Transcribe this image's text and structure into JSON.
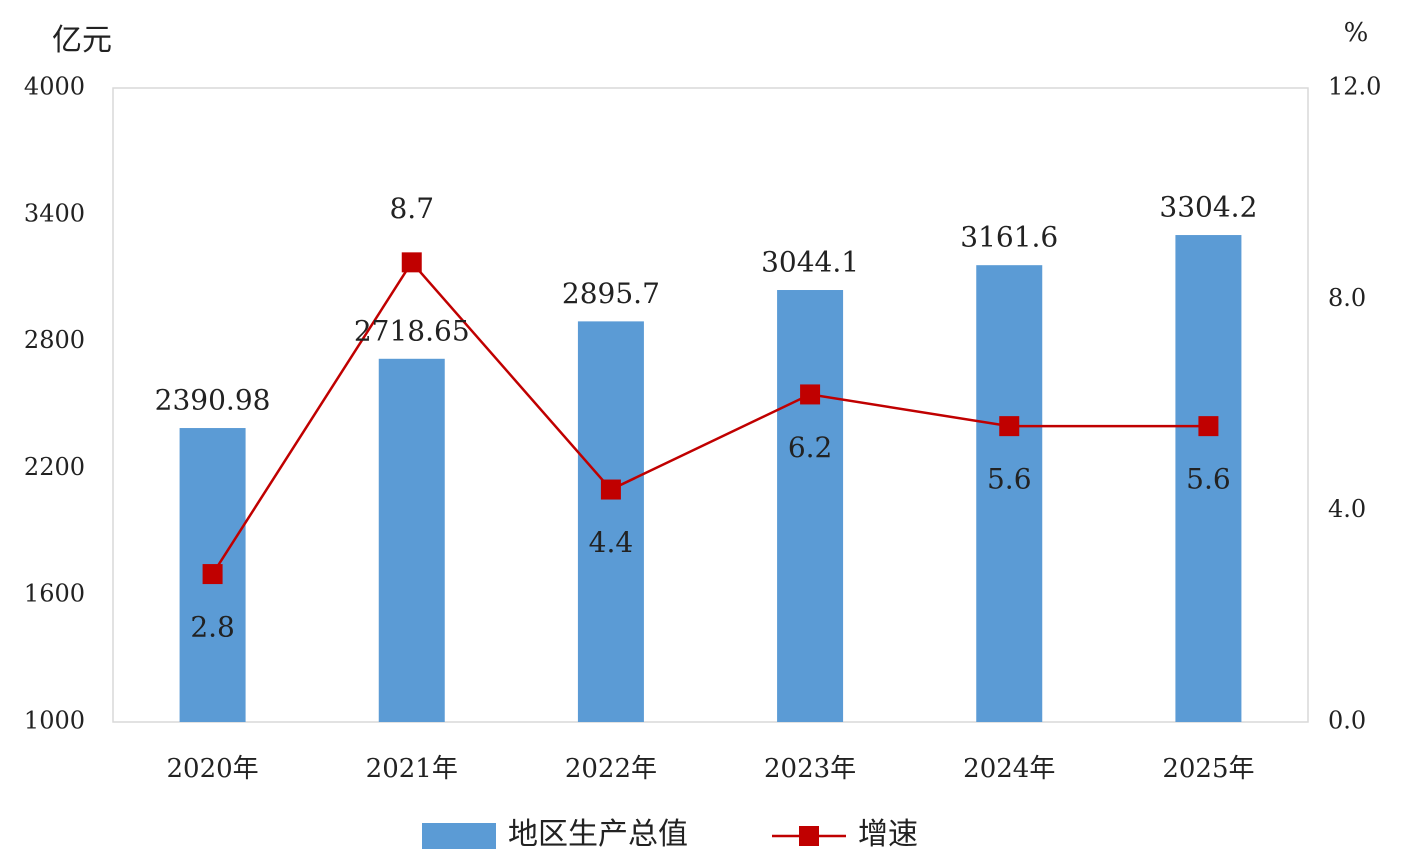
{
  "chart_data": {
    "type": "bar",
    "y_label": "亿元",
    "y2_label": "%",
    "categories": [
      "2020年",
      "2021年",
      "2022年",
      "2023年",
      "2024年",
      "2025年"
    ],
    "series": [
      {
        "name": "地区生产总值",
        "type": "bar",
        "color": "#5b9bd5",
        "values": [
          2390.98,
          2718.65,
          2895.7,
          3044.1,
          3161.6,
          3304.2
        ]
      },
      {
        "name": "增速",
        "type": "line",
        "axis": "y2",
        "color": "#c00000",
        "values": [
          2.8,
          8.7,
          4.4,
          6.2,
          5.6,
          5.6
        ]
      }
    ],
    "ylim": [
      1000,
      4000
    ],
    "yticks": [
      1000,
      1600,
      2200,
      2800,
      3400,
      4000
    ],
    "y2lim": [
      0,
      12
    ],
    "y2ticks": [
      {
        "value": 0,
        "label": "0.0"
      },
      {
        "value": 4,
        "label": "4.0"
      },
      {
        "value": 8,
        "label": "8.0"
      },
      {
        "value": 12,
        "label": "12.0"
      }
    ],
    "legend": "bottom"
  }
}
